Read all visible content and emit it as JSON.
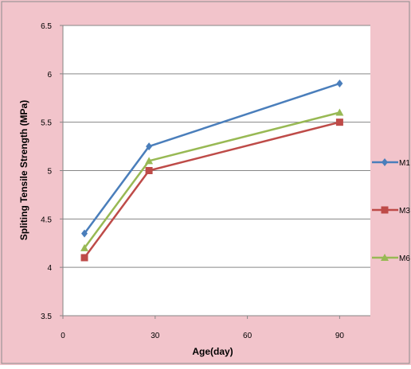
{
  "chart_data": {
    "type": "line",
    "xlabel": "Age(day)",
    "ylabel": "Spliting Tensile Strength (MPa)",
    "xlim": [
      0,
      100
    ],
    "ylim": [
      3.5,
      6.5
    ],
    "x_ticks": [
      "0",
      "30",
      "60",
      "90"
    ],
    "y_ticks": [
      "3.5",
      "4",
      "4.5",
      "5",
      "5.5",
      "6",
      "6.5"
    ],
    "grid": "horizontal major gridlines",
    "legend_position": "right",
    "series": [
      {
        "name": "M1",
        "legend_text": "M1",
        "color": "#4a7ebb",
        "marker": "diamond",
        "x": [
          7,
          28,
          90
        ],
        "values": [
          4.35,
          5.25,
          5.9
        ]
      },
      {
        "name": "M3",
        "legend_text": "M3",
        "color": "#be4b48",
        "marker": "square",
        "x": [
          7,
          28,
          90
        ],
        "values": [
          4.1,
          5.0,
          5.5
        ]
      },
      {
        "name": "M6",
        "legend_text": "M6",
        "color": "#98b954",
        "marker": "triangle",
        "x": [
          7,
          28,
          90
        ],
        "values": [
          4.2,
          5.1,
          5.6
        ]
      }
    ]
  },
  "colors": {
    "outer_background": "#f2c4cb",
    "plot_background": "#ffffff",
    "gridline": "#868686"
  }
}
